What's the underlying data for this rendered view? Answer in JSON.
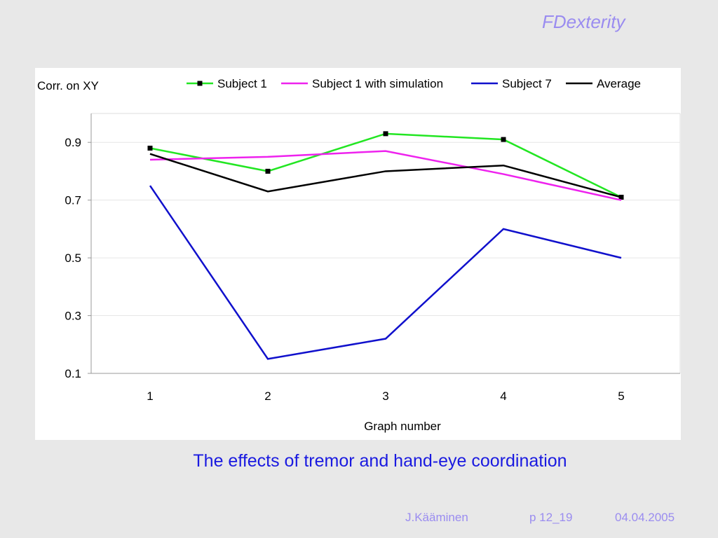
{
  "header": {
    "brand": "FDexterity"
  },
  "slide": {
    "caption": "The effects of tremor and hand-eye coordination"
  },
  "footer": {
    "author": "J.Kääminen",
    "page": "p 12_19",
    "date": "04.04.2005"
  },
  "chart_data": {
    "type": "line",
    "title": "",
    "xlabel": "Graph number",
    "ylabel": "Corr. on XY",
    "x": [
      1,
      2,
      3,
      4,
      5
    ],
    "ylim": [
      0.1,
      1.0
    ],
    "yticks": [
      0.1,
      0.3,
      0.5,
      0.7,
      0.9
    ],
    "grid": true,
    "legend_position": "top",
    "series": [
      {
        "name": "Subject 1",
        "color": "#22e622",
        "markers": true,
        "values": [
          0.88,
          0.8,
          0.93,
          0.91,
          0.71
        ]
      },
      {
        "name": "Subject 1 with simulation",
        "color": "#ee22ee",
        "markers": false,
        "values": [
          0.84,
          0.85,
          0.87,
          0.79,
          0.7
        ]
      },
      {
        "name": "Subject 7",
        "color": "#1010cc",
        "markers": false,
        "values": [
          0.75,
          0.15,
          0.22,
          0.6,
          0.5
        ]
      },
      {
        "name": "Average",
        "color": "#000000",
        "markers": false,
        "values": [
          0.86,
          0.73,
          0.8,
          0.82,
          0.71
        ]
      }
    ]
  }
}
